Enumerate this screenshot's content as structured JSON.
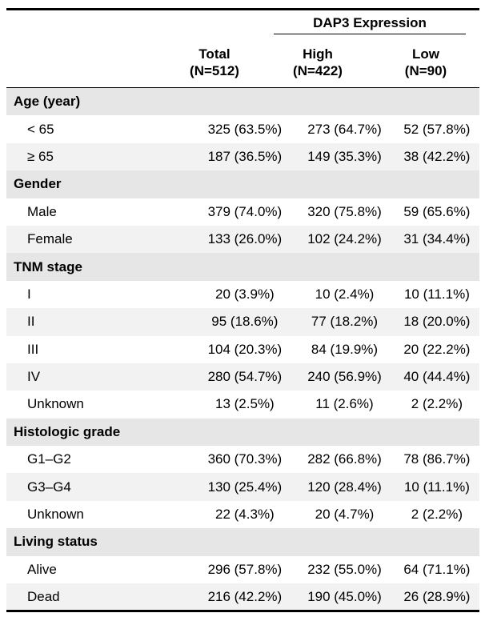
{
  "header": {
    "group_title": "DAP3 Expression",
    "columns": [
      {
        "name": "Total",
        "n": "(N=512)"
      },
      {
        "name": "High",
        "n": "(N=422)"
      },
      {
        "name": "Low",
        "n": "(N=90)"
      }
    ]
  },
  "sections": [
    {
      "title": "Age (year)",
      "rows": [
        {
          "label": "< 65",
          "total": "325 (63.5%)",
          "high": "273 (64.7%)",
          "low": "52 (57.8%)"
        },
        {
          "label": "≥ 65",
          "total": "187 (36.5%)",
          "high": "149 (35.3%)",
          "low": "38 (42.2%)"
        }
      ]
    },
    {
      "title": "Gender",
      "rows": [
        {
          "label": "Male",
          "total": "379 (74.0%)",
          "high": "320 (75.8%)",
          "low": "59 (65.6%)"
        },
        {
          "label": "Female",
          "total": "133 (26.0%)",
          "high": "102 (24.2%)",
          "low": "31 (34.4%)"
        }
      ]
    },
    {
      "title": "TNM stage",
      "rows": [
        {
          "label": "I",
          "total": "20 (3.9%)",
          "high": "10 (2.4%)",
          "low": "10 (11.1%)"
        },
        {
          "label": "II",
          "total": "95 (18.6%)",
          "high": "77 (18.2%)",
          "low": "18 (20.0%)"
        },
        {
          "label": "III",
          "total": "104 (20.3%)",
          "high": "84 (19.9%)",
          "low": "20 (22.2%)"
        },
        {
          "label": "IV",
          "total": "280 (54.7%)",
          "high": "240 (56.9%)",
          "low": "40 (44.4%)"
        },
        {
          "label": "Unknown",
          "total": "13 (2.5%)",
          "high": "11 (2.6%)",
          "low": "2 (2.2%)"
        }
      ]
    },
    {
      "title": "Histologic grade",
      "rows": [
        {
          "label": "G1–G2",
          "total": "360 (70.3%)",
          "high": "282 (66.8%)",
          "low": "78 (86.7%)"
        },
        {
          "label": "G3–G4",
          "total": "130 (25.4%)",
          "high": "120 (28.4%)",
          "low": "10 (11.1%)"
        },
        {
          "label": "Unknown",
          "total": "22 (4.3%)",
          "high": "20 (4.7%)",
          "low": "2 (2.2%)"
        }
      ]
    },
    {
      "title": "Living status",
      "rows": [
        {
          "label": "Alive",
          "total": "296 (57.8%)",
          "high": "232 (55.0%)",
          "low": "64 (71.1%)"
        },
        {
          "label": "Dead",
          "total": "216 (42.2%)",
          "high": "190 (45.0%)",
          "low": "26 (28.9%)"
        }
      ]
    }
  ]
}
